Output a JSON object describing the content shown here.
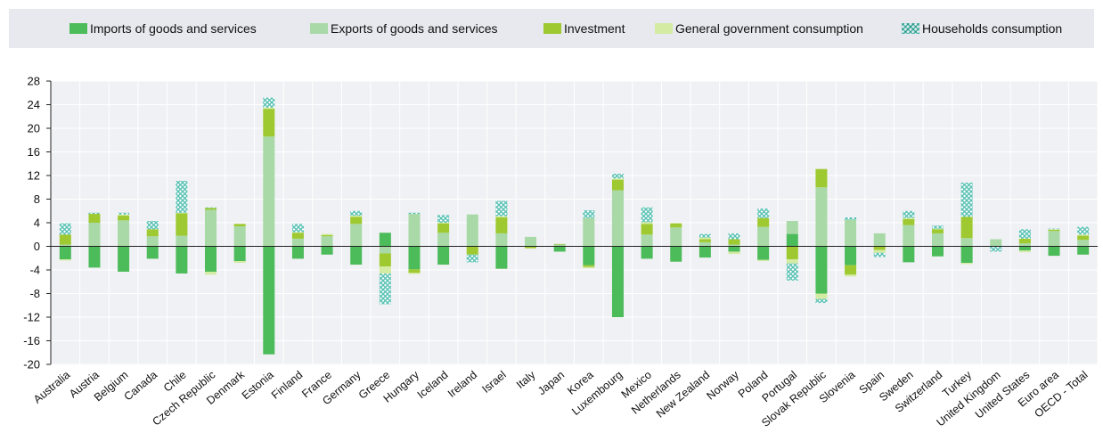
{
  "chart_data": {
    "type": "bar",
    "stacked": true,
    "grid": true,
    "legend_position": "top",
    "ylim": [
      -20,
      28
    ],
    "yticks": [
      -20,
      -16,
      -12,
      -8,
      -4,
      0,
      4,
      8,
      12,
      16,
      20,
      24,
      28
    ],
    "categories": [
      "Australia",
      "Austria",
      "Belgium",
      "Canada",
      "Chile",
      "Czech Republic",
      "Denmark",
      "Estonia",
      "Finland",
      "France",
      "Germany",
      "Greece",
      "Hungary",
      "Iceland",
      "Ireland",
      "Israel",
      "Italy",
      "Japan",
      "Korea",
      "Luxembourg",
      "Mexico",
      "Netherlands",
      "New Zealand",
      "Norway",
      "Poland",
      "Portugal",
      "Slovak Republic",
      "Slovenia",
      "Spain",
      "Sweden",
      "Switzerland",
      "Turkey",
      "United Kingdom",
      "United States",
      "Euro area",
      "OECD - Total"
    ],
    "series": [
      {
        "name": "Imports of goods and services",
        "color": "#4cbb5a",
        "pattern": "solid",
        "values": [
          -2.2,
          -3.6,
          -4.3,
          -2.1,
          -4.6,
          -4.3,
          -2.5,
          -18.3,
          -2.1,
          -1.4,
          -3.1,
          2.3,
          -3.9,
          -3.1,
          0,
          -3.8,
          0,
          -0.9,
          -3.2,
          -12.0,
          -2.1,
          -2.6,
          -1.9,
          -0.9,
          -2.3,
          2.1,
          -8.0,
          -3.2,
          0,
          -2.7,
          -1.7,
          -2.8,
          0,
          -0.7,
          -1.6,
          -1.4
        ]
      },
      {
        "name": "Exports of goods and services",
        "color": "#a8d9a6",
        "pattern": "solid",
        "values": [
          0.3,
          4.0,
          4.4,
          1.7,
          1.8,
          6.2,
          3.4,
          18.6,
          1.3,
          1.7,
          3.8,
          -1.2,
          5.5,
          2.3,
          5.4,
          2.2,
          1.6,
          0.3,
          4.8,
          9.5,
          2.0,
          3.2,
          0.7,
          0.3,
          3.3,
          2.2,
          10.0,
          4.5,
          2.2,
          3.6,
          2.2,
          1.4,
          1.2,
          0.5,
          2.6,
          1.1
        ]
      },
      {
        "name": "Investment",
        "color": "#9ec930",
        "pattern": "solid",
        "values": [
          1.7,
          1.5,
          0.8,
          1.2,
          3.8,
          0.3,
          0.4,
          4.7,
          1.0,
          0.2,
          1.2,
          -2.2,
          -0.6,
          1.6,
          -1.4,
          2.7,
          -0.3,
          0.1,
          -0.3,
          1.8,
          1.8,
          0.7,
          0.5,
          0.9,
          1.5,
          -2.2,
          3.1,
          -1.6,
          -0.6,
          1.0,
          0.7,
          3.6,
          0,
          0.8,
          0.2,
          0.7
        ]
      },
      {
        "name": "General government consumption",
        "color": "#d3eba3",
        "pattern": "solid",
        "values": [
          -0.2,
          0,
          0.2,
          0,
          0.1,
          -0.5,
          -0.3,
          0.2,
          0.1,
          0.2,
          0.2,
          -1.2,
          -0.2,
          0.1,
          0,
          0.2,
          -0.1,
          0,
          -0.2,
          0.2,
          0.3,
          0,
          0.3,
          -0.4,
          -0.2,
          -0.7,
          -0.9,
          -0.3,
          -0.5,
          0.2,
          0.1,
          -0.2,
          0,
          -0.3,
          0.1,
          0.2
        ]
      },
      {
        "name": "Households consumption",
        "color": "#58c1b4",
        "pattern": "lattice",
        "values": [
          1.9,
          0.2,
          0.3,
          1.4,
          5.4,
          0.1,
          0,
          1.7,
          1.4,
          0,
          0.8,
          -5.2,
          0.2,
          1.3,
          -1.3,
          2.6,
          0,
          0,
          1.3,
          0.8,
          2.5,
          0,
          0.6,
          1.0,
          1.6,
          -2.9,
          -0.7,
          0.4,
          -0.7,
          1.2,
          0.5,
          5.8,
          -0.9,
          1.6,
          0.1,
          1.3
        ]
      }
    ]
  }
}
